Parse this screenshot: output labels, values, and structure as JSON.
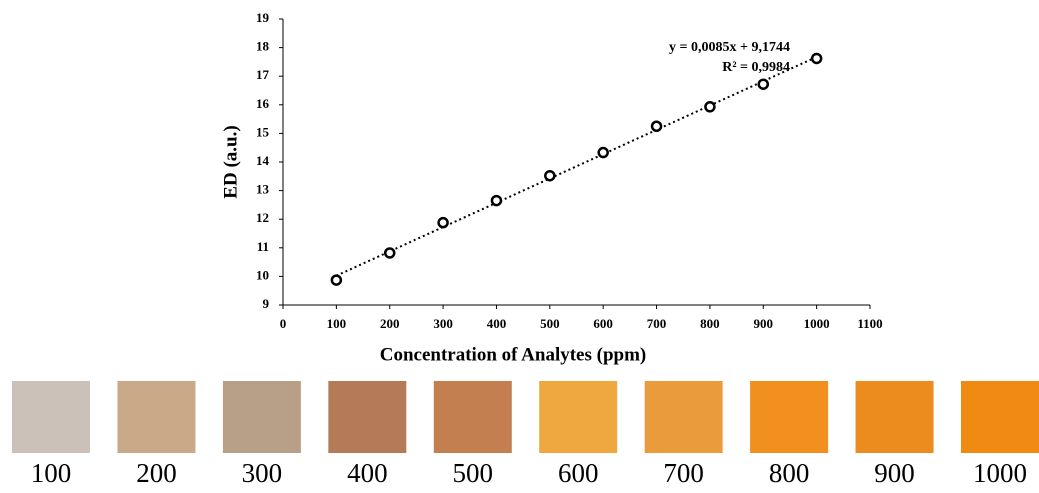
{
  "chart_data": {
    "type": "scatter",
    "x_label": "Concentration of Analytes (ppm)",
    "y_label": "ED (a.u.)",
    "x": [
      100,
      200,
      300,
      400,
      500,
      600,
      700,
      800,
      900,
      1000
    ],
    "values": [
      9.87,
      10.82,
      11.88,
      12.65,
      13.52,
      14.33,
      15.25,
      15.93,
      16.72,
      17.62
    ],
    "color": "#000000",
    "xlim": [
      0,
      1100
    ],
    "xticks": [
      0,
      100,
      200,
      300,
      400,
      500,
      600,
      700,
      800,
      900,
      1000,
      1100
    ],
    "ylim": [
      9,
      19
    ],
    "yticks": [
      9,
      10,
      11,
      12,
      13,
      14,
      15,
      16,
      17,
      18,
      19
    ],
    "trendline": {
      "equation": "y = 0,0085x + 9,1744",
      "r_squared": "R² = 0,9984",
      "slope": 0.0085,
      "intercept": 9.1744
    }
  },
  "swatches": [
    {
      "label": "100",
      "color": "#cbc1b8"
    },
    {
      "label": "200",
      "color": "#c9a988"
    },
    {
      "label": "300",
      "color": "#b89f88"
    },
    {
      "label": "400",
      "color": "#b37b58"
    },
    {
      "label": "500",
      "color": "#c47f50"
    },
    {
      "label": "600",
      "color": "#efa83f"
    },
    {
      "label": "700",
      "color": "#ea9b3c"
    },
    {
      "label": "800",
      "color": "#f1901f"
    },
    {
      "label": "900",
      "color": "#ec8b1e"
    },
    {
      "label": "1000",
      "color": "#f18a12"
    }
  ]
}
